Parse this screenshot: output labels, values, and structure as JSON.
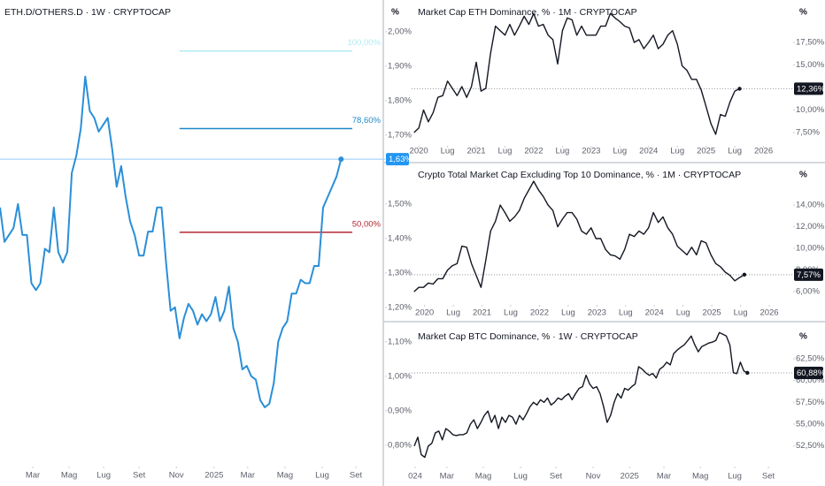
{
  "chart_data": [
    {
      "type": "line",
      "title": "ETH.D/OTHERS.D · 1W · CRYPTOCAP",
      "unit": "%",
      "xlim": [
        0,
        85.8
      ],
      "ylim": [
        0.738,
        2.092
      ],
      "yticks": [
        {
          "value": 0.8,
          "label": "0,80%"
        },
        {
          "value": 0.9,
          "label": "0,90%"
        },
        {
          "value": 1.0,
          "label": "1,00%"
        },
        {
          "value": 1.1,
          "label": "1,10%"
        },
        {
          "value": 1.2,
          "label": "1,20%"
        },
        {
          "value": 1.3,
          "label": "1,30%"
        },
        {
          "value": 1.4,
          "label": "1,40%"
        },
        {
          "value": 1.5,
          "label": "1,50%"
        },
        {
          "value": 1.7,
          "label": "1,70%"
        },
        {
          "value": 1.8,
          "label": "1,80%"
        },
        {
          "value": 1.9,
          "label": "1,90%"
        },
        {
          "value": 2.0,
          "label": "2,00%"
        }
      ],
      "xticks": [
        {
          "value": 7.3,
          "label": "Mar"
        },
        {
          "value": 15.4,
          "label": "Mag"
        },
        {
          "value": 23.1,
          "label": "Lug"
        },
        {
          "value": 31,
          "label": "Set"
        },
        {
          "value": 39.3,
          "label": "Nov"
        },
        {
          "value": 47.7,
          "label": "2025"
        },
        {
          "value": 55.2,
          "label": "Mar"
        },
        {
          "value": 63.5,
          "label": "Mag"
        },
        {
          "value": 71.8,
          "label": "Lug"
        },
        {
          "value": 79.3,
          "label": "Set"
        }
      ],
      "series": [
        {
          "color": "#2a8fd8",
          "label_color": "#2196f3",
          "last_label": "1,63%",
          "values": [
            1.49,
            1.39,
            1.41,
            1.43,
            1.5,
            1.41,
            1.41,
            1.27,
            1.25,
            1.27,
            1.37,
            1.36,
            1.49,
            1.36,
            1.33,
            1.36,
            1.59,
            1.64,
            1.72,
            1.87,
            1.77,
            1.75,
            1.71,
            1.73,
            1.75,
            1.66,
            1.55,
            1.61,
            1.52,
            1.45,
            1.41,
            1.35,
            1.35,
            1.42,
            1.42,
            1.49,
            1.49,
            1.33,
            1.19,
            1.2,
            1.11,
            1.17,
            1.21,
            1.19,
            1.15,
            1.18,
            1.16,
            1.18,
            1.23,
            1.16,
            1.19,
            1.26,
            1.14,
            1.1,
            1.02,
            1.03,
            1.0,
            0.99,
            0.93,
            0.91,
            0.92,
            0.98,
            1.1,
            1.14,
            1.16,
            1.24,
            1.24,
            1.28,
            1.27,
            1.27,
            1.32,
            1.32,
            1.49,
            1.52,
            1.55,
            1.58,
            1.63
          ]
        }
      ],
      "fib": {
        "from": 0.892,
        "to": 1.944,
        "start": 40,
        "end": 78.5,
        "levels": [
          {
            "ratio": 100,
            "label": "100,00%",
            "color": "#b2ebf2"
          },
          {
            "ratio": 78.6,
            "label": "78,60%",
            "color": "#1e88c8"
          },
          {
            "ratio": 50,
            "label": "50,00%",
            "color": "#b22833"
          }
        ]
      }
    },
    {
      "type": "line",
      "title": "Market Cap ETH Dominance, % · 1M · CRYPTOCAP",
      "unit": "%",
      "xlim": [
        -0.5,
        79
      ],
      "ylim": [
        6.03,
        22.2
      ],
      "yticks": [
        {
          "value": 7.5,
          "label": "7,50%"
        },
        {
          "value": 10,
          "label": "10,00%"
        },
        {
          "value": 15,
          "label": "15,00%"
        },
        {
          "value": 17.5,
          "label": "17,50%"
        }
      ],
      "xticks": [
        {
          "value": 1,
          "label": "2020"
        },
        {
          "value": 7,
          "label": "Lug"
        },
        {
          "value": 13,
          "label": "2021"
        },
        {
          "value": 19,
          "label": "Lug"
        },
        {
          "value": 25,
          "label": "2022"
        },
        {
          "value": 31,
          "label": "Lug"
        },
        {
          "value": 37,
          "label": "2023"
        },
        {
          "value": 43,
          "label": "Lug"
        },
        {
          "value": 49,
          "label": "2024"
        },
        {
          "value": 55,
          "label": "Lug"
        },
        {
          "value": 61,
          "label": "2025"
        },
        {
          "value": 67,
          "label": "Lug"
        },
        {
          "value": 73,
          "label": "2026"
        }
      ],
      "series": [
        {
          "color": "#131722",
          "label_color": "#131722",
          "last_label": "12,36%",
          "values": [
            7.5,
            8.0,
            10.0,
            8.7,
            9.7,
            11.4,
            11.6,
            13.2,
            12.4,
            11.6,
            12.6,
            11.4,
            12.6,
            15.3,
            12.1,
            12.4,
            16.3,
            19.3,
            18.8,
            18.3,
            19.5,
            18.3,
            19.3,
            20.4,
            19.5,
            20.7,
            19.3,
            19.5,
            18.3,
            17.8,
            15.1,
            18.8,
            20.2,
            20.0,
            18.3,
            19.3,
            18.3,
            18.3,
            18.3,
            19.3,
            19.3,
            20.7,
            20.2,
            19.8,
            19.3,
            19.1,
            17.5,
            17.8,
            16.8,
            17.5,
            18.3,
            16.8,
            17.3,
            18.3,
            18.8,
            17.3,
            14.9,
            14.4,
            13.4,
            13.4,
            12.2,
            10.4,
            8.5,
            7.3,
            9.5,
            9.3,
            10.9,
            12.1,
            12.36
          ]
        }
      ]
    },
    {
      "type": "line",
      "title": "Crypto Total Market Cap Excluding Top 10 Dominance, % · 1M · CRYPTOCAP",
      "unit": "%",
      "xlim": [
        -0.5,
        79
      ],
      "ylim": [
        4.78,
        17.76
      ],
      "yticks": [
        {
          "value": 6,
          "label": "6,00%"
        },
        {
          "value": 8,
          "label": "8,00%"
        },
        {
          "value": 10,
          "label": "10,00%"
        },
        {
          "value": 12,
          "label": "12,00%"
        },
        {
          "value": 14,
          "label": "14,00%"
        }
      ],
      "xticks": [
        {
          "value": 2.2,
          "label": "2020"
        },
        {
          "value": 8.2,
          "label": "Lug"
        },
        {
          "value": 14.2,
          "label": "2021"
        },
        {
          "value": 20.2,
          "label": "Lug"
        },
        {
          "value": 26.2,
          "label": "2022"
        },
        {
          "value": 32.2,
          "label": "Lug"
        },
        {
          "value": 38.2,
          "label": "2023"
        },
        {
          "value": 44.2,
          "label": "Lug"
        },
        {
          "value": 50.2,
          "label": "2024"
        },
        {
          "value": 56.2,
          "label": "Lug"
        },
        {
          "value": 62.2,
          "label": "2025"
        },
        {
          "value": 68.2,
          "label": "Lug"
        },
        {
          "value": 74.2,
          "label": "2026"
        }
      ],
      "series": [
        {
          "color": "#131722",
          "label_color": "#131722",
          "last_label": "7,57%",
          "values": [
            6.0,
            6.4,
            6.4,
            6.8,
            6.7,
            7.2,
            7.2,
            8.0,
            8.4,
            8.6,
            10.2,
            10.1,
            8.6,
            7.5,
            6.4,
            8.9,
            11.6,
            12.5,
            14.0,
            13.3,
            12.5,
            12.9,
            13.5,
            14.6,
            15.4,
            16.2,
            15.4,
            14.8,
            14.0,
            13.5,
            12.0,
            12.7,
            13.3,
            13.3,
            12.7,
            11.6,
            11.3,
            11.9,
            10.9,
            10.9,
            9.9,
            9.4,
            9.3,
            9.0,
            9.9,
            11.3,
            11.1,
            11.6,
            11.3,
            11.9,
            13.3,
            12.4,
            12.9,
            11.9,
            11.3,
            10.2,
            9.8,
            9.4,
            10.1,
            9.4,
            10.7,
            10.5,
            9.4,
            8.6,
            8.3,
            7.8,
            7.5,
            7.0,
            7.3,
            7.57
          ]
        }
      ]
    },
    {
      "type": "line",
      "title": "Market Cap BTC Dominance, % · 1W · CRYPTOCAP",
      "unit": "%",
      "xlim": [
        -0.76,
        107.8
      ],
      "ylim": [
        50.14,
        66.55
      ],
      "yticks": [
        {
          "value": 52.5,
          "label": "52,50%"
        },
        {
          "value": 55,
          "label": "55,00%"
        },
        {
          "value": 57.5,
          "label": "57,50%"
        },
        {
          "value": 60,
          "label": "60,00%"
        },
        {
          "value": 62.5,
          "label": "62,50%"
        }
      ],
      "xticks": [
        {
          "value": 0.25,
          "label": "024"
        },
        {
          "value": 9.3,
          "label": "Mar"
        },
        {
          "value": 19.7,
          "label": "Mag"
        },
        {
          "value": 30.3,
          "label": "Lug"
        },
        {
          "value": 40.4,
          "label": "Set"
        },
        {
          "value": 51,
          "label": "Nov"
        },
        {
          "value": 61.4,
          "label": "2025"
        },
        {
          "value": 71.2,
          "label": "Mar"
        },
        {
          "value": 81.6,
          "label": "Mag"
        },
        {
          "value": 91.4,
          "label": "Lug"
        },
        {
          "value": 101,
          "label": "Set"
        }
      ],
      "series": [
        {
          "color": "#131722",
          "label_color": "#131722",
          "last_label": "60,88%",
          "values": [
            52.5,
            53.5,
            51.5,
            51.2,
            52.5,
            52.8,
            54.0,
            54.2,
            53.2,
            54.5,
            54.2,
            53.8,
            53.7,
            53.8,
            53.8,
            54.0,
            55.0,
            55.5,
            54.5,
            55.2,
            56.0,
            56.5,
            55.2,
            56.0,
            54.5,
            55.8,
            55.2,
            56.0,
            55.8,
            55.0,
            56.0,
            55.5,
            56.2,
            57.0,
            57.5,
            57.2,
            57.8,
            57.5,
            58.0,
            57.2,
            57.5,
            58.0,
            57.8,
            58.2,
            58.5,
            57.8,
            58.5,
            59.1,
            59.3,
            60.6,
            59.6,
            59.1,
            59.3,
            58.5,
            57.0,
            55.2,
            56.0,
            57.5,
            58.5,
            58.0,
            59.1,
            58.9,
            59.3,
            59.6,
            61.6,
            61.3,
            60.9,
            60.6,
            60.8,
            60.3,
            61.3,
            61.6,
            62.1,
            61.8,
            63.1,
            63.5,
            63.8,
            64.1,
            64.6,
            65.1,
            64.1,
            63.3,
            63.9,
            64.1,
            64.3,
            64.4,
            64.6,
            65.5,
            65.3,
            65.1,
            64.1,
            60.9,
            60.8,
            62.1,
            61.1,
            60.88
          ]
        }
      ]
    }
  ]
}
